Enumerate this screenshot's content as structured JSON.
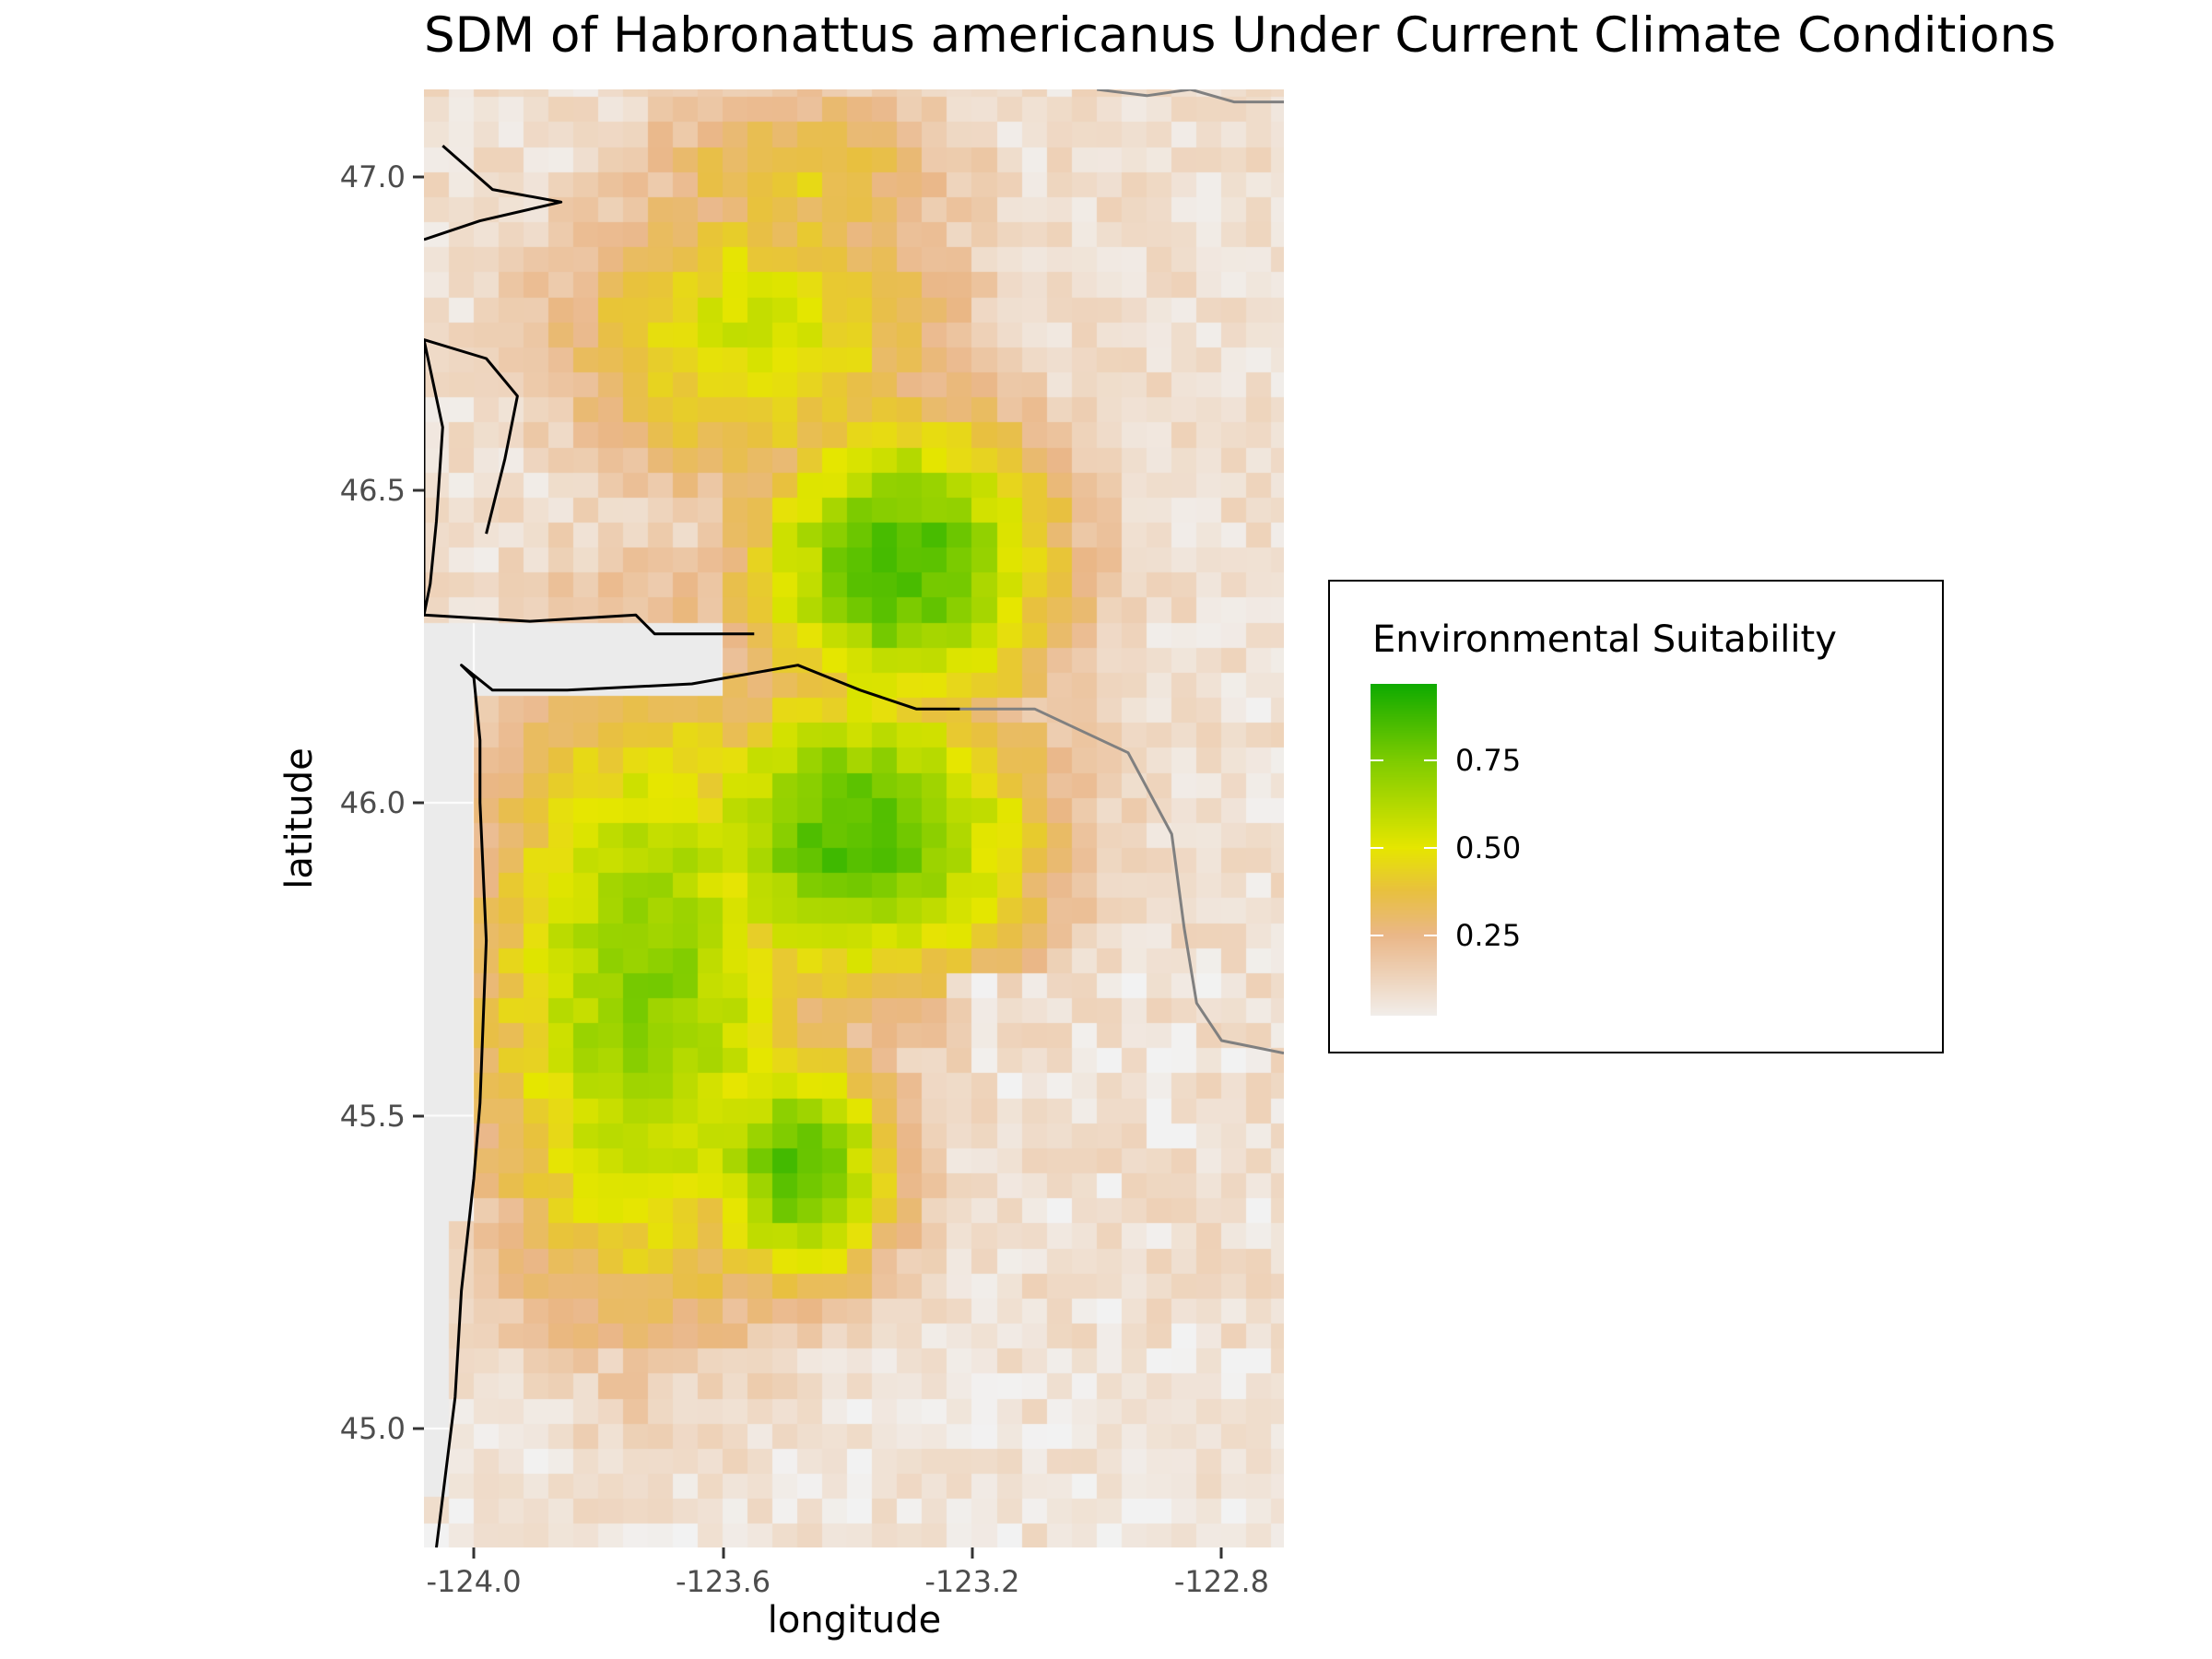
{
  "title": "SDM of Habronattus americanus Under Current Climate Conditions",
  "chart_data": {
    "type": "heatmap",
    "title": "SDM of Habronattus americanus Under Current Climate Conditions",
    "xlabel": "longitude",
    "ylabel": "latitude",
    "xlim": [
      -124.08,
      -122.7
    ],
    "ylim": [
      44.81,
      47.14
    ],
    "cell_size_deg": 0.04,
    "x_ticks": [
      -124.0,
      -123.6,
      -123.2,
      -122.8
    ],
    "x_tick_labels": [
      "-124.0",
      "-123.6",
      "-123.2",
      "-122.8"
    ],
    "y_ticks": [
      45.0,
      45.5,
      46.0,
      46.5,
      47.0
    ],
    "y_tick_labels": [
      "45.0",
      "45.5",
      "46.0",
      "46.5",
      "47.0"
    ],
    "value_field": "Environmental Suitability",
    "value_range": [
      0,
      1
    ],
    "suitability_regions": [
      {
        "name": "high_core_north",
        "lon": -123.31,
        "lat": 46.38,
        "radius_lon": 0.28,
        "radius_lat": 0.28,
        "value": 0.86
      },
      {
        "name": "high_core_central",
        "lon": -123.38,
        "lat": 45.95,
        "radius_lon": 0.32,
        "radius_lat": 0.28,
        "value": 0.86
      },
      {
        "name": "high_core_south",
        "lon": -123.48,
        "lat": 45.42,
        "radius_lon": 0.18,
        "radius_lat": 0.22,
        "value": 0.84
      },
      {
        "name": "moderate_west",
        "lon": -123.72,
        "lat": 45.7,
        "radius_lon": 0.3,
        "radius_lat": 0.6,
        "value": 0.72
      },
      {
        "name": "moderate_north",
        "lon": -123.55,
        "lat": 46.75,
        "radius_lon": 0.35,
        "radius_lat": 0.28,
        "value": 0.55
      },
      {
        "name": "moderate_far_north",
        "lon": -123.48,
        "lat": 47.0,
        "radius_lon": 0.3,
        "radius_lat": 0.18,
        "value": 0.4
      }
    ],
    "low_zones": [
      {
        "name": "willamette_valley",
        "lon_min": -123.25,
        "lat_max": 45.72,
        "value": 0.04
      },
      {
        "name": "east_of_coast_range",
        "lon_min": -123.05,
        "lat_min": 45.72,
        "value": 0.12
      },
      {
        "name": "ocean",
        "description": "no data",
        "value": null
      }
    ],
    "coastline_path": [
      [
        -124.06,
        44.81
      ],
      [
        -124.03,
        45.05
      ],
      [
        -124.02,
        45.22
      ],
      [
        -124.0,
        45.4
      ],
      [
        -123.99,
        45.52
      ],
      [
        -123.98,
        45.78
      ],
      [
        -123.99,
        46.0
      ],
      [
        -123.99,
        46.1
      ],
      [
        -124.0,
        46.2
      ],
      [
        -124.02,
        46.22
      ],
      [
        -123.97,
        46.18
      ],
      [
        -123.85,
        46.18
      ],
      [
        -123.65,
        46.19
      ],
      [
        -123.48,
        46.22
      ],
      [
        -123.38,
        46.18
      ],
      [
        -123.29,
        46.15
      ],
      [
        -123.22,
        46.15
      ]
    ],
    "north_shore_path": [
      [
        -124.08,
        46.3
      ],
      [
        -123.91,
        46.29
      ],
      [
        -123.74,
        46.3
      ],
      [
        -123.71,
        46.27
      ],
      [
        -123.55,
        46.27
      ]
    ],
    "willapa_path": [
      [
        -124.08,
        46.74
      ],
      [
        -124.05,
        46.6
      ],
      [
        -124.06,
        46.45
      ],
      [
        -124.07,
        46.35
      ],
      [
        -124.08,
        46.3
      ],
      [
        -124.08,
        46.74
      ],
      [
        -123.98,
        46.71
      ],
      [
        -123.93,
        46.65
      ],
      [
        -123.95,
        46.55
      ],
      [
        -123.98,
        46.43
      ]
    ],
    "grays_harbor_path": [
      [
        -124.08,
        46.9
      ],
      [
        -123.99,
        46.93
      ],
      [
        -123.86,
        46.96
      ],
      [
        -123.97,
        46.98
      ],
      [
        -124.05,
        47.05
      ]
    ],
    "river_path": [
      [
        -123.22,
        46.15
      ],
      [
        -123.1,
        46.15
      ],
      [
        -122.95,
        46.08
      ],
      [
        -122.88,
        45.95
      ],
      [
        -122.86,
        45.8
      ],
      [
        -122.84,
        45.68
      ],
      [
        -122.8,
        45.62
      ],
      [
        -122.7,
        45.6
      ]
    ],
    "north_edge_path": [
      [
        -123.0,
        47.14
      ],
      [
        -122.92,
        47.13
      ],
      [
        -122.85,
        47.14
      ],
      [
        -122.78,
        47.12
      ],
      [
        -122.7,
        47.12
      ]
    ]
  },
  "legend": {
    "title": "Environmental Suitability",
    "ticks": [
      {
        "value": 0.75,
        "label": "0.75"
      },
      {
        "value": 0.5,
        "label": "0.50"
      },
      {
        "value": 0.25,
        "label": "0.25"
      }
    ],
    "gradient_stops": [
      {
        "value": 0.0,
        "color": "#f2f2f2"
      },
      {
        "value": 0.25,
        "color": "#eab788"
      },
      {
        "value": 0.375,
        "color": "#e8c040"
      },
      {
        "value": 0.5,
        "color": "#e6e600"
      },
      {
        "value": 0.75,
        "color": "#7fcc00"
      },
      {
        "value": 1.0,
        "color": "#00a600"
      }
    ]
  },
  "colors": {
    "panel_background": "#ebebeb",
    "gridline": "#ffffff",
    "coastline": "#000000",
    "shoreline_detail": "#808080"
  }
}
